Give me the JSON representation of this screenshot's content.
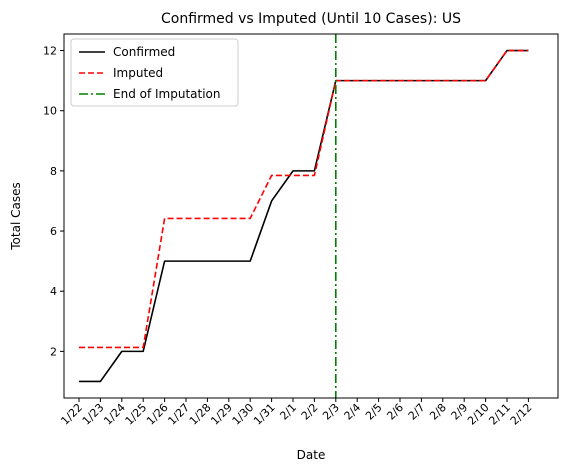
{
  "chart_data": {
    "type": "line",
    "title": "Confirmed vs Imputed (Until 10 Cases): US",
    "xlabel": "Date",
    "ylabel": "Total Cases",
    "categories": [
      "1/22",
      "1/23",
      "1/24",
      "1/25",
      "1/26",
      "1/27",
      "1/28",
      "1/29",
      "1/30",
      "1/31",
      "2/1",
      "2/2",
      "2/3",
      "2/4",
      "2/5",
      "2/6",
      "2/7",
      "2/8",
      "2/9",
      "2/10",
      "2/11",
      "2/12"
    ],
    "ylim": [
      0.45,
      12.55
    ],
    "yticks": [
      2,
      4,
      6,
      8,
      10,
      12
    ],
    "series": [
      {
        "name": "Confirmed",
        "color": "#000000",
        "style": "solid",
        "values": [
          1,
          1,
          2,
          2,
          5,
          5,
          5,
          5,
          5,
          7,
          8,
          8,
          11,
          11,
          11,
          11,
          11,
          11,
          11,
          11,
          12,
          12
        ]
      },
      {
        "name": "Imputed",
        "color": "#ff0000",
        "style": "dashed",
        "values": [
          2.13,
          2.13,
          2.13,
          2.13,
          6.42,
          6.42,
          6.42,
          6.42,
          6.42,
          7.85,
          7.85,
          7.85,
          11,
          11,
          11,
          11,
          11,
          11,
          11,
          11,
          12,
          12
        ]
      }
    ],
    "vline": {
      "name": "End of Imputation",
      "color": "#008000",
      "style": "dashdot",
      "at_category": "2/3"
    },
    "legend_position": "top-left",
    "grid": false
  }
}
